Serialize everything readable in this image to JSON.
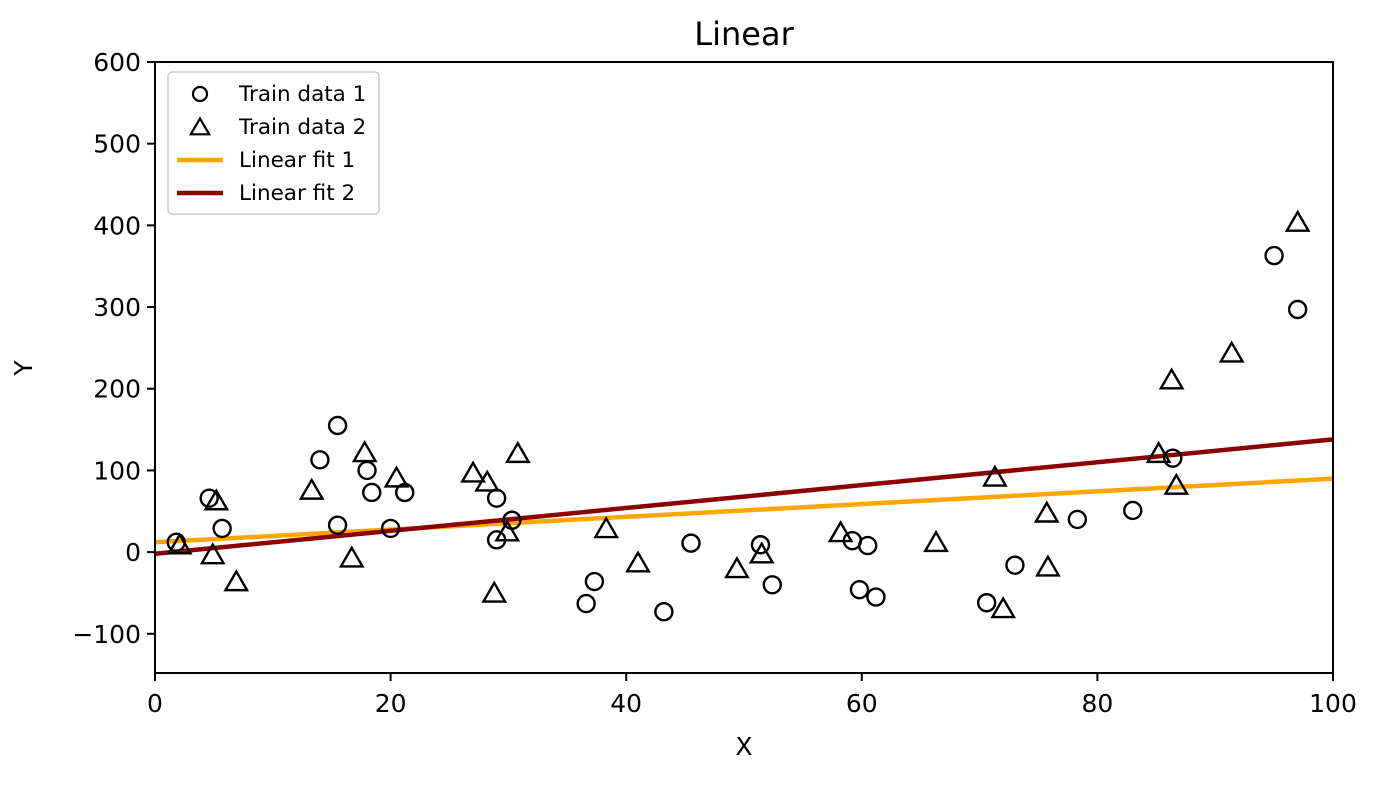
{
  "chart_data": {
    "type": "scatter",
    "title": "Linear",
    "xlabel": "X",
    "ylabel": "Y",
    "xlim": [
      0,
      100
    ],
    "ylim": [
      -148,
      600
    ],
    "grid": false,
    "xticks": {
      "values": [
        0,
        20,
        40,
        60,
        80,
        100
      ],
      "labels": [
        "0",
        "20",
        "40",
        "60",
        "80",
        "100"
      ]
    },
    "yticks": {
      "values": [
        -100,
        0,
        100,
        200,
        300,
        400,
        500,
        600
      ],
      "labels": [
        "−100",
        "0",
        "100",
        "200",
        "300",
        "400",
        "500",
        "600"
      ]
    },
    "colors": {
      "fit1": "#FFA500",
      "fit2": "#8B0000",
      "markers": "#000000"
    },
    "legend": {
      "position": "upper left",
      "entries": [
        {
          "label": "Train data 1",
          "marker": "circle",
          "color": "#000000"
        },
        {
          "label": "Train data 2",
          "marker": "triangle",
          "color": "#000000"
        },
        {
          "label": "Linear fit 1",
          "marker": "line",
          "color": "#FFA500"
        },
        {
          "label": "Linear fit 2",
          "marker": "line",
          "color": "#8B0000"
        }
      ]
    },
    "series": [
      {
        "name": "Train data 1",
        "type": "scatter",
        "marker": "circle",
        "color": "#000000",
        "points": [
          [
            1.8,
            12
          ],
          [
            4.6,
            66
          ],
          [
            5.7,
            29
          ],
          [
            14,
            113
          ],
          [
            15.5,
            155
          ],
          [
            15.5,
            33
          ],
          [
            18,
            100
          ],
          [
            18.4,
            73
          ],
          [
            20,
            29
          ],
          [
            21.2,
            73
          ],
          [
            29,
            66
          ],
          [
            29,
            15
          ],
          [
            30.3,
            39
          ],
          [
            36.6,
            -63
          ],
          [
            37.3,
            -36
          ],
          [
            43.2,
            -73
          ],
          [
            45.5,
            11
          ],
          [
            51.4,
            9
          ],
          [
            52.4,
            -40
          ],
          [
            59.2,
            14
          ],
          [
            60.5,
            8
          ],
          [
            59.8,
            -46
          ],
          [
            61.2,
            -55
          ],
          [
            70.6,
            -62
          ],
          [
            73,
            -16
          ],
          [
            78.3,
            40
          ],
          [
            83,
            51
          ],
          [
            86.4,
            115
          ],
          [
            95,
            363
          ],
          [
            97,
            297
          ]
        ]
      },
      {
        "name": "Train data 2",
        "type": "scatter",
        "marker": "triangle",
        "color": "#000000",
        "points": [
          [
            2.1,
            9
          ],
          [
            4.9,
            -3
          ],
          [
            5.2,
            63
          ],
          [
            6.9,
            -36
          ],
          [
            13.3,
            76
          ],
          [
            16.7,
            -7
          ],
          [
            17.8,
            122
          ],
          [
            20.5,
            91
          ],
          [
            27,
            97
          ],
          [
            28.2,
            86
          ],
          [
            28.8,
            -50
          ],
          [
            29.9,
            25
          ],
          [
            30.8,
            121
          ],
          [
            38.3,
            29
          ],
          [
            41,
            -13
          ],
          [
            49.4,
            -20
          ],
          [
            51.5,
            -2
          ],
          [
            58.2,
            24
          ],
          [
            66.3,
            12
          ],
          [
            71.3,
            92
          ],
          [
            72,
            -69
          ],
          [
            75.7,
            48
          ],
          [
            75.8,
            -18
          ],
          [
            85.2,
            121
          ],
          [
            86.3,
            211
          ],
          [
            86.7,
            82
          ],
          [
            91.4,
            244
          ],
          [
            97,
            404
          ]
        ]
      },
      {
        "name": "Linear fit 1",
        "type": "line",
        "color": "#FFA500",
        "x": [
          0,
          100
        ],
        "y": [
          12,
          90
        ]
      },
      {
        "name": "Linear fit 2",
        "type": "line",
        "color": "#8B0000",
        "x": [
          0,
          100
        ],
        "y": [
          -2,
          138
        ]
      }
    ]
  }
}
